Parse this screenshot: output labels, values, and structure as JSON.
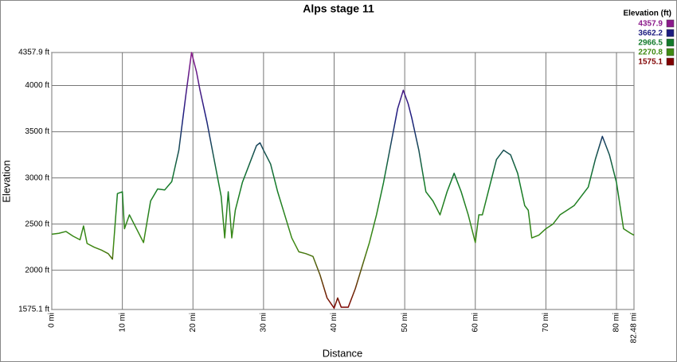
{
  "chart_data": {
    "type": "line",
    "title": "Alps stage 11",
    "x_label": "Distance",
    "y_label": "Elevation",
    "legend_title": "Elevation (ft)",
    "color_scale": [
      {
        "value": 4357.9,
        "color": "#8b1a8b"
      },
      {
        "value": 3662.2,
        "color": "#1c1c80"
      },
      {
        "value": 2966.5,
        "color": "#117a2a"
      },
      {
        "value": 2270.8,
        "color": "#3f8a12"
      },
      {
        "value": 1575.1,
        "color": "#800000"
      }
    ],
    "x": [
      0,
      1,
      2,
      3,
      4,
      4.5,
      5,
      6,
      7,
      8,
      8.6,
      9.3,
      10,
      10.3,
      11,
      12,
      13,
      14,
      15,
      16,
      17,
      18,
      19,
      19.8,
      20.5,
      21,
      22,
      23,
      24,
      24.5,
      25,
      25.5,
      26,
      27,
      28,
      29,
      29.5,
      30,
      31,
      32,
      33,
      34,
      35,
      36,
      37,
      38,
      39,
      40,
      40.5,
      41,
      42,
      43,
      44,
      45,
      46,
      47,
      48,
      49,
      49.8,
      50.5,
      51,
      52,
      53,
      54,
      55,
      56,
      57,
      58,
      59,
      60,
      60.5,
      61,
      62,
      63,
      64,
      65,
      66,
      67,
      67.5,
      68,
      69,
      70,
      71,
      72,
      73,
      74,
      75,
      76,
      77,
      78,
      79,
      80,
      81,
      82,
      82.48
    ],
    "values": [
      2390,
      2400,
      2420,
      2370,
      2330,
      2480,
      2290,
      2250,
      2220,
      2180,
      2120,
      2830,
      2850,
      2450,
      2600,
      2450,
      2300,
      2750,
      2880,
      2870,
      2960,
      3300,
      3900,
      4357.9,
      4150,
      3950,
      3600,
      3200,
      2800,
      2350,
      2850,
      2350,
      2650,
      2950,
      3150,
      3350,
      3380,
      3300,
      3150,
      2850,
      2600,
      2350,
      2200,
      2180,
      2150,
      1950,
      1700,
      1590,
      1700,
      1600,
      1600,
      1800,
      2050,
      2300,
      2600,
      2950,
      3350,
      3750,
      3950,
      3800,
      3650,
      3300,
      2850,
      2750,
      2600,
      2850,
      3050,
      2850,
      2600,
      2300,
      2600,
      2600,
      2900,
      3200,
      3300,
      3250,
      3050,
      2700,
      2650,
      2350,
      2380,
      2450,
      2500,
      2600,
      2650,
      2700,
      2800,
      2900,
      3200,
      3450,
      3250,
      2950,
      2450,
      2400,
      2380
    ],
    "xlim": [
      0,
      82.48
    ],
    "ylim": [
      1575.1,
      4357.9
    ],
    "xticks": [
      {
        "value": 0,
        "label": "0 mi"
      },
      {
        "value": 10,
        "label": "10 mi"
      },
      {
        "value": 20,
        "label": "20 mi"
      },
      {
        "value": 30,
        "label": "30 mi"
      },
      {
        "value": 40,
        "label": "40 mi"
      },
      {
        "value": 50,
        "label": "50 mi"
      },
      {
        "value": 60,
        "label": "60 mi"
      },
      {
        "value": 70,
        "label": "70 mi"
      },
      {
        "value": 80,
        "label": "80 mi"
      },
      {
        "value": 82.48,
        "label": "82.48 mi"
      }
    ],
    "yticks": [
      {
        "value": 1575.1,
        "label": "1575.1 ft"
      },
      {
        "value": 2000,
        "label": "2000 ft"
      },
      {
        "value": 2500,
        "label": "2500 ft"
      },
      {
        "value": 3000,
        "label": "3000 ft"
      },
      {
        "value": 3500,
        "label": "3500 ft"
      },
      {
        "value": 4000,
        "label": "4000 ft"
      },
      {
        "value": 4357.9,
        "label": "4357.9 ft"
      }
    ],
    "grid": true
  }
}
